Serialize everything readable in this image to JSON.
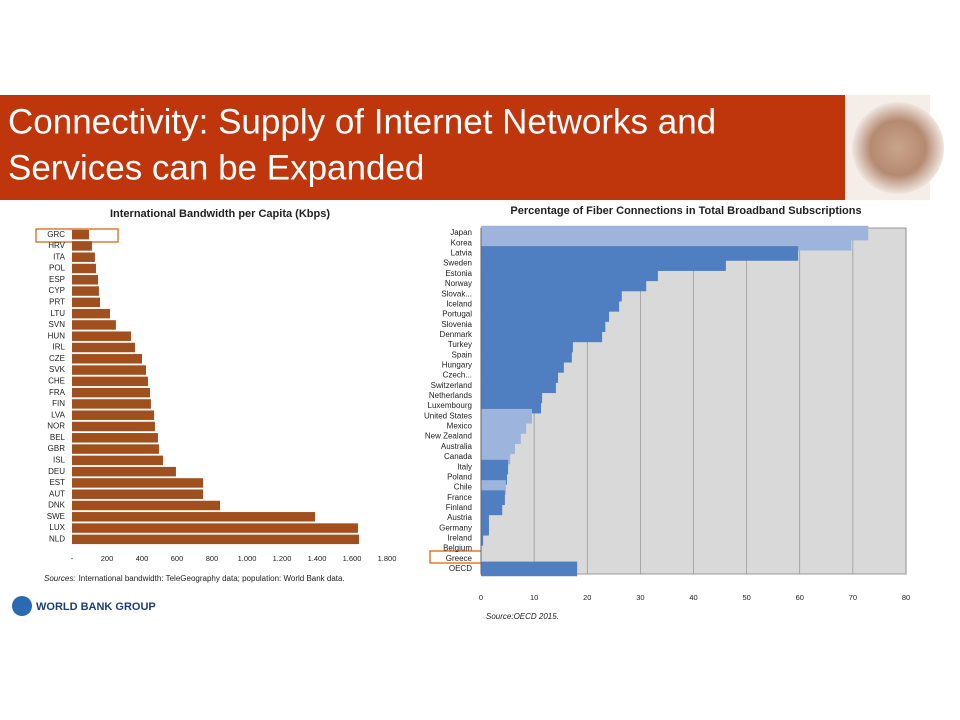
{
  "header": {
    "title_lines": [
      "Connectivity: Supply of Internet Networks and",
      "Services can be Expanded"
    ]
  },
  "logo": "WORLD BANK GROUP",
  "chart_data": [
    {
      "type": "bar",
      "orientation": "horizontal",
      "title": "International Bandwidth per Capita (Kbps)",
      "categories": [
        "GRC",
        "HRV",
        "ITA",
        "POL",
        "ESP",
        "CYP",
        "PRT",
        "LTU",
        "SVN",
        "HUN",
        "IRL",
        "CZE",
        "SVK",
        "CHE",
        "FRA",
        "FIN",
        "LVA",
        "NOR",
        "BEL",
        "GBR",
        "ISL",
        "DEU",
        "EST",
        "AUT",
        "DNK",
        "SWE",
        "LUX",
        "NLD"
      ],
      "values": [
        97,
        114,
        131,
        137,
        149,
        154,
        160,
        217,
        251,
        337,
        360,
        400,
        423,
        434,
        446,
        451,
        469,
        474,
        491,
        497,
        520,
        594,
        749,
        749,
        846,
        1389,
        1634,
        1640
      ],
      "color": "#a0501e",
      "xlim": [
        0,
        1800
      ],
      "xticks": [
        {
          "value": 0,
          "label": "-"
        },
        200,
        400,
        600,
        800,
        {
          "value": 1000,
          "label": "1.000"
        },
        {
          "value": 1200,
          "label": "1.200"
        },
        {
          "value": 1400,
          "label": "1.400"
        },
        {
          "value": 1600,
          "label": "1.600"
        },
        {
          "value": 1800,
          "label": "1.800"
        }
      ],
      "grid": false,
      "source_label": "Sources:",
      "source": "International bandwidth: TeleGeography data; population: World Bank data."
    },
    {
      "type": "bar",
      "orientation": "horizontal",
      "title": "Percentage of Fiber Connections in Total Broadband Subscriptions",
      "categories": [
        "Japan",
        "Korea",
        "Latvia",
        "Sweden",
        "Estonia",
        "Norway",
        "Slovak...",
        "Iceland",
        "Portugal",
        "Slovenia",
        "Denmark",
        "Turkey",
        "Spain",
        "Hungary",
        "Czech...",
        "Switzerland",
        "Netherlands",
        "Luxembourg",
        "United States",
        "Mexico",
        "New Zealand",
        "Australia",
        "Canada",
        "Italy",
        "Poland",
        "Chile",
        "France",
        "Finland",
        "Austria",
        "Germany",
        "Ireland",
        "Belgium",
        "Greece",
        "OECD"
      ],
      "values": [
        72.9,
        69.7,
        59.7,
        46.1,
        33.3,
        31.1,
        26.5,
        26.0,
        24.1,
        23.4,
        22.8,
        17.3,
        17.1,
        15.6,
        14.5,
        14.1,
        11.5,
        11.3,
        9.6,
        8.5,
        7.5,
        6.4,
        5.5,
        5.1,
        4.9,
        4.7,
        4.5,
        4.0,
        1.5,
        1.5,
        0.4,
        0,
        0,
        18.1
      ],
      "colors": [
        "#9db5dc",
        "#9db5dc",
        "#4f7fc1",
        "#4f7fc1",
        "#4f7fc1",
        "#4f7fc1",
        "#4f7fc1",
        "#4f7fc1",
        "#4f7fc1",
        "#4f7fc1",
        "#4f7fc1",
        "#4f7fc1",
        "#4f7fc1",
        "#4f7fc1",
        "#4f7fc1",
        "#4f7fc1",
        "#4f7fc1",
        "#4f7fc1",
        "#9db5dc",
        "#9db5dc",
        "#9db5dc",
        "#9db5dc",
        "#9db5dc",
        "#4f7fc1",
        "#4f7fc1",
        "#9db5dc",
        "#4f7fc1",
        "#4f7fc1",
        "#4f7fc1",
        "#4f7fc1",
        "#4f7fc1",
        "#4f7fc1",
        "#4f7fc1",
        "#4f7fc1"
      ],
      "xlim": [
        0,
        80
      ],
      "xticks": [
        0,
        10,
        20,
        30,
        40,
        50,
        60,
        70,
        80
      ],
      "grid": true,
      "plot_background": "#d9d9d9",
      "source": "Source:OECD 2015."
    }
  ]
}
